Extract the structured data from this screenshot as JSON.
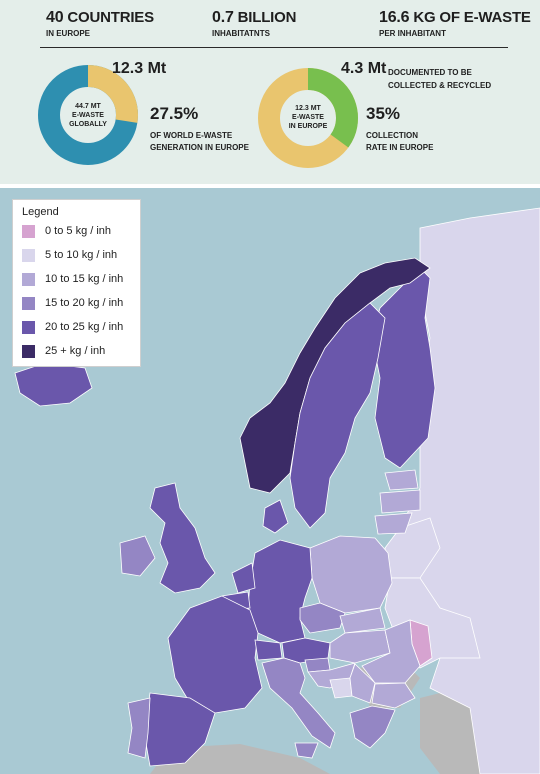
{
  "stats": [
    {
      "value": "40",
      "unit": "COUNTRIES",
      "sub": "IN EUROPE"
    },
    {
      "value": "0.7",
      "unit": "BILLION",
      "sub": "INHABITATNTS"
    },
    {
      "value": "16.6",
      "unit": "KG OF E-WASTE",
      "sub": "PER INHABITANT"
    }
  ],
  "donut_global": {
    "big": "12.3 Mt",
    "center_line1": "44.7 Mt",
    "center_line2": "E-WASTE",
    "center_line3": "GLOBALLY",
    "percent": "27.5%",
    "sub_line1": "OF WORLD E-WASTE",
    "sub_line2": "GENERATION IN EUROPE",
    "fraction": 0.275,
    "colors": {
      "share": "#e9c56e",
      "rest": "#2e8fb0"
    }
  },
  "donut_europe": {
    "big": "4.3 Mt",
    "big_note_line1": "DOCUMENTED TO BE",
    "big_note_line2": "COLLECTED & RECYCLED",
    "center_line1": "12.3 Mt",
    "center_line2": "E-WASTE",
    "center_line3": "IN EUROPE",
    "percent": "35%",
    "sub_line1": "COLLECTION",
    "sub_line2": "RATE IN EUROPE",
    "fraction": 0.35,
    "colors": {
      "share": "#78bf4e",
      "rest": "#e9c56e"
    }
  },
  "legend": {
    "title": "Legend",
    "items": [
      {
        "label": "0 to 5 kg / inh",
        "color": "#d6a3d0"
      },
      {
        "label": "5 to 10 kg / inh",
        "color": "#d9d6ec"
      },
      {
        "label": "10 to 15 kg / inh",
        "color": "#b2a9d6"
      },
      {
        "label": "15 to 20 kg / inh",
        "color": "#9486c4"
      },
      {
        "label": "20 to 25 kg / inh",
        "color": "#6a57ab"
      },
      {
        "label": "25 + kg / inh",
        "color": "#3b2b66"
      }
    ]
  },
  "map": {
    "sea_color": "#a9c9d3",
    "non_european_color": "#b9b9b9",
    "countries": [
      {
        "name": "Iceland",
        "category": "20 to 25 kg / inh"
      },
      {
        "name": "Norway",
        "category": "25 + kg / inh"
      },
      {
        "name": "Sweden",
        "category": "20 to 25 kg / inh"
      },
      {
        "name": "Finland",
        "category": "20 to 25 kg / inh"
      },
      {
        "name": "Russia",
        "category": "5 to 10 kg / inh"
      },
      {
        "name": "Estonia",
        "category": "10 to 15 kg / inh"
      },
      {
        "name": "Latvia",
        "category": "10 to 15 kg / inh"
      },
      {
        "name": "Lithuania",
        "category": "10 to 15 kg / inh"
      },
      {
        "name": "Belarus",
        "category": "5 to 10 kg / inh"
      },
      {
        "name": "Ukraine",
        "category": "5 to 10 kg / inh"
      },
      {
        "name": "Moldova",
        "category": "0 to 5 kg / inh"
      },
      {
        "name": "Poland",
        "category": "10 to 15 kg / inh"
      },
      {
        "name": "Germany",
        "category": "20 to 25 kg / inh"
      },
      {
        "name": "Denmark",
        "category": "20 to 25 kg / inh"
      },
      {
        "name": "Netherlands",
        "category": "20 to 25 kg / inh"
      },
      {
        "name": "Belgium",
        "category": "20 to 25 kg / inh"
      },
      {
        "name": "France",
        "category": "20 to 25 kg / inh"
      },
      {
        "name": "United Kingdom",
        "category": "20 to 25 kg / inh"
      },
      {
        "name": "Ireland",
        "category": "15 to 20 kg / inh"
      },
      {
        "name": "Spain",
        "category": "20 to 25 kg / inh"
      },
      {
        "name": "Portugal",
        "category": "15 to 20 kg / inh"
      },
      {
        "name": "Switzerland",
        "category": "20 to 25 kg / inh"
      },
      {
        "name": "Austria",
        "category": "20 to 25 kg / inh"
      },
      {
        "name": "Czech Republic",
        "category": "15 to 20 kg / inh"
      },
      {
        "name": "Slovakia",
        "category": "10 to 15 kg / inh"
      },
      {
        "name": "Hungary",
        "category": "10 to 15 kg / inh"
      },
      {
        "name": "Italy",
        "category": "15 to 20 kg / inh"
      },
      {
        "name": "Slovenia",
        "category": "15 to 20 kg / inh"
      },
      {
        "name": "Croatia",
        "category": "10 to 15 kg / inh"
      },
      {
        "name": "Romania",
        "category": "10 to 15 kg / inh"
      },
      {
        "name": "Serbia",
        "category": "10 to 15 kg / inh"
      },
      {
        "name": "Bosnia",
        "category": "5 to 10 kg / inh"
      },
      {
        "name": "Bulgaria",
        "category": "10 to 15 kg / inh"
      },
      {
        "name": "Greece",
        "category": "15 to 20 kg / inh"
      }
    ]
  }
}
